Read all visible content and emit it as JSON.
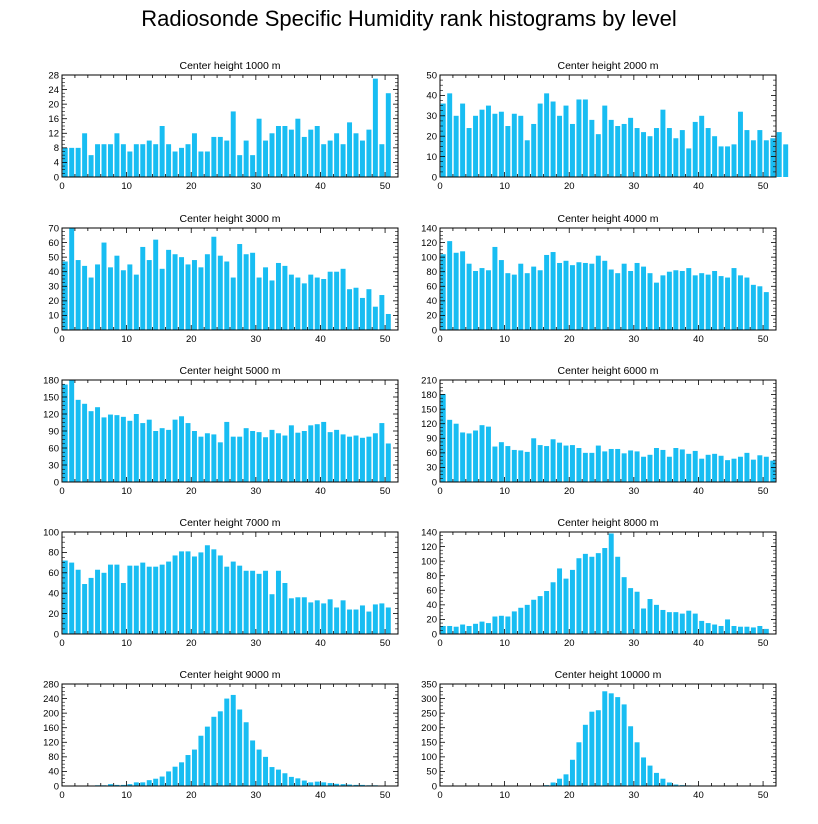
{
  "title": "Radiosonde Specific Humidity rank histograms by level",
  "bar_color": "#18bdf2",
  "chart_data": [
    {
      "type": "bar",
      "title": "Center height 1000 m",
      "xlim": [
        0,
        52
      ],
      "ylim": [
        0,
        28
      ],
      "xticks": [
        0,
        10,
        20,
        30,
        40,
        50
      ],
      "yticks": [
        0,
        4,
        8,
        12,
        16,
        20,
        24,
        28
      ],
      "values": [
        8,
        8,
        8,
        12,
        6,
        9,
        9,
        9,
        12,
        9,
        7,
        9,
        9,
        10,
        9,
        14,
        9,
        7,
        8,
        9,
        12,
        7,
        7,
        11,
        11,
        10,
        18,
        6,
        10,
        6,
        16,
        10,
        12,
        14,
        14,
        13,
        16,
        11,
        13,
        14,
        9,
        10,
        12,
        9,
        15,
        12,
        10,
        13,
        27,
        9,
        23
      ]
    },
    {
      "type": "bar",
      "title": "Center height 2000 m",
      "xlim": [
        0,
        52
      ],
      "ylim": [
        0,
        50
      ],
      "xticks": [
        0,
        10,
        20,
        30,
        40,
        50
      ],
      "yticks": [
        0,
        10,
        20,
        30,
        40,
        50
      ],
      "values": [
        36,
        41,
        30,
        36,
        24,
        30,
        33,
        35,
        31,
        32,
        25,
        31,
        30,
        18,
        26,
        36,
        41,
        37,
        30,
        35,
        26,
        38,
        38,
        28,
        21,
        35,
        28,
        25,
        26,
        29,
        24,
        22,
        20,
        24,
        33,
        24,
        19,
        23,
        14,
        27,
        30,
        24,
        20,
        15,
        15,
        16,
        32,
        23,
        18,
        23,
        18,
        19,
        22,
        16
      ]
    },
    {
      "type": "bar",
      "title": "Center height 3000 m",
      "xlim": [
        0,
        52
      ],
      "ylim": [
        0,
        70
      ],
      "xticks": [
        0,
        10,
        20,
        30,
        40,
        50
      ],
      "yticks": [
        0,
        10,
        20,
        30,
        40,
        50,
        60,
        70
      ],
      "values": [
        47,
        70,
        48,
        44,
        36,
        45,
        60,
        43,
        51,
        41,
        45,
        38,
        57,
        48,
        62,
        42,
        55,
        52,
        50,
        45,
        48,
        43,
        52,
        64,
        51,
        47,
        36,
        59,
        52,
        53,
        36,
        43,
        34,
        46,
        44,
        38,
        36,
        32,
        38,
        36,
        35,
        40,
        40,
        42,
        28,
        29,
        22,
        28,
        16,
        24,
        11
      ]
    },
    {
      "type": "bar",
      "title": "Center height 4000 m",
      "xlim": [
        0,
        52
      ],
      "ylim": [
        0,
        140
      ],
      "xticks": [
        0,
        10,
        20,
        30,
        40,
        50
      ],
      "yticks": [
        0,
        20,
        40,
        60,
        80,
        100,
        120,
        140
      ],
      "values": [
        104,
        122,
        106,
        108,
        91,
        81,
        85,
        82,
        114,
        96,
        78,
        76,
        91,
        78,
        87,
        82,
        103,
        107,
        92,
        95,
        89,
        93,
        92,
        91,
        102,
        95,
        83,
        78,
        91,
        81,
        92,
        87,
        78,
        65,
        75,
        80,
        82,
        81,
        85,
        75,
        78,
        76,
        81,
        74,
        72,
        85,
        75,
        72,
        62,
        60,
        52
      ]
    },
    {
      "type": "bar",
      "title": "Center height 5000 m",
      "xlim": [
        0,
        52
      ],
      "ylim": [
        0,
        180
      ],
      "xticks": [
        0,
        10,
        20,
        30,
        40,
        50
      ],
      "yticks": [
        0,
        30,
        60,
        90,
        120,
        150,
        180
      ],
      "values": [
        172,
        180,
        145,
        138,
        125,
        132,
        114,
        119,
        118,
        115,
        108,
        120,
        104,
        110,
        90,
        95,
        92,
        110,
        116,
        104,
        90,
        80,
        86,
        84,
        70,
        106,
        80,
        80,
        95,
        90,
        88,
        79,
        92,
        86,
        82,
        100,
        87,
        90,
        100,
        102,
        106,
        88,
        92,
        84,
        80,
        82,
        78,
        80,
        86,
        104,
        68
      ]
    },
    {
      "type": "bar",
      "title": "Center height 6000 m",
      "xlim": [
        0,
        52
      ],
      "ylim": [
        0,
        210
      ],
      "xticks": [
        0,
        10,
        20,
        30,
        40,
        50
      ],
      "yticks": [
        0,
        30,
        60,
        90,
        120,
        150,
        180,
        210
      ],
      "values": [
        181,
        128,
        120,
        102,
        100,
        106,
        117,
        114,
        73,
        82,
        74,
        66,
        65,
        62,
        90,
        76,
        74,
        88,
        81,
        75,
        76,
        70,
        60,
        60,
        75,
        63,
        68,
        68,
        59,
        65,
        63,
        52,
        56,
        70,
        66,
        52,
        70,
        67,
        58,
        64,
        48,
        56,
        58,
        54,
        45,
        48,
        52,
        60,
        46,
        55,
        52,
        44
      ]
    },
    {
      "type": "bar",
      "title": "Center height 7000 m",
      "xlim": [
        0,
        52
      ],
      "ylim": [
        0,
        100
      ],
      "xticks": [
        0,
        10,
        20,
        30,
        40,
        50
      ],
      "yticks": [
        0,
        20,
        40,
        60,
        80,
        100
      ],
      "values": [
        72,
        70,
        63,
        49,
        55,
        63,
        60,
        68,
        68,
        50,
        67,
        67,
        70,
        66,
        66,
        68,
        71,
        77,
        81,
        81,
        76,
        80,
        87,
        83,
        77,
        66,
        71,
        67,
        62,
        62,
        59,
        62,
        39,
        62,
        50,
        35,
        36,
        36,
        31,
        33,
        30,
        34,
        26,
        33,
        24,
        24,
        28,
        22,
        29,
        30,
        26
      ]
    },
    {
      "type": "bar",
      "title": "Center height 8000 m",
      "xlim": [
        0,
        52
      ],
      "ylim": [
        0,
        140
      ],
      "xticks": [
        0,
        10,
        20,
        30,
        40,
        50
      ],
      "yticks": [
        0,
        20,
        40,
        60,
        80,
        100,
        120,
        140
      ],
      "values": [
        11,
        11,
        10,
        13,
        11,
        14,
        17,
        15,
        24,
        25,
        24,
        31,
        36,
        40,
        47,
        52,
        59,
        71,
        90,
        76,
        88,
        104,
        110,
        106,
        111,
        118,
        138,
        106,
        78,
        63,
        58,
        35,
        48,
        40,
        33,
        30,
        30,
        28,
        32,
        28,
        18,
        15,
        13,
        11,
        20,
        11,
        10,
        10,
        9,
        11,
        7
      ]
    },
    {
      "type": "bar",
      "title": "Center height 9000 m",
      "xlim": [
        0,
        52
      ],
      "ylim": [
        0,
        280
      ],
      "xticks": [
        0,
        10,
        20,
        30,
        40,
        50
      ],
      "yticks": [
        0,
        40,
        80,
        120,
        160,
        200,
        240,
        280
      ],
      "values": [
        0,
        0,
        1,
        0,
        1,
        2,
        2,
        5,
        3,
        3,
        5,
        10,
        10,
        16,
        20,
        26,
        40,
        53,
        65,
        85,
        100,
        138,
        163,
        190,
        205,
        240,
        250,
        210,
        175,
        125,
        100,
        80,
        52,
        45,
        35,
        25,
        21,
        15,
        10,
        12,
        10,
        8,
        6,
        5,
        4,
        3,
        3,
        2,
        2,
        1,
        1
      ]
    },
    {
      "type": "bar",
      "title": "Center height 10000 m",
      "xlim": [
        0,
        52
      ],
      "ylim": [
        0,
        350
      ],
      "xticks": [
        0,
        10,
        20,
        30,
        40,
        50
      ],
      "yticks": [
        0,
        50,
        100,
        150,
        200,
        250,
        300,
        350
      ],
      "values": [
        0,
        0,
        0,
        0,
        0,
        0,
        0,
        0,
        0,
        0,
        0,
        0,
        0,
        0,
        0,
        1,
        3,
        12,
        25,
        40,
        90,
        150,
        210,
        255,
        260,
        325,
        318,
        305,
        280,
        205,
        150,
        98,
        70,
        45,
        25,
        12,
        5,
        3,
        2,
        1,
        1,
        0,
        0,
        0,
        0,
        0,
        0,
        0,
        0,
        0,
        0
      ]
    }
  ]
}
